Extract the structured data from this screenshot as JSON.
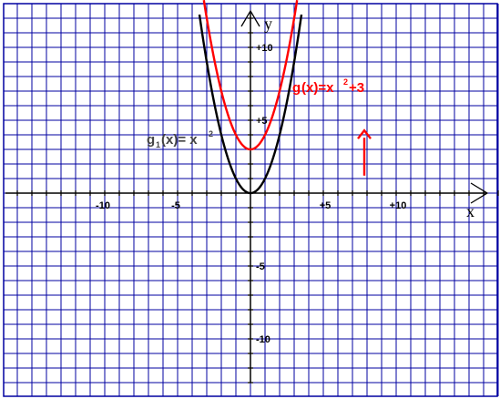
{
  "chart_data": {
    "type": "line",
    "title": "",
    "xlabel": "x",
    "ylabel": "y",
    "xlim": [
      -16.5,
      17.5
    ],
    "ylim": [
      -13.7,
      13.2
    ],
    "grid": true,
    "x_ticks": [
      {
        "value": -10,
        "label": "-10"
      },
      {
        "value": -5,
        "label": "-5"
      },
      {
        "value": 5,
        "label": "+5"
      },
      {
        "value": 10,
        "label": "+10"
      }
    ],
    "y_ticks": [
      {
        "value": 10,
        "label": "+10"
      },
      {
        "value": 5,
        "label": "+5"
      },
      {
        "value": -5,
        "label": "-5"
      },
      {
        "value": -10,
        "label": "-10"
      }
    ],
    "series": [
      {
        "name_main": "g",
        "name_sub": "1",
        "name_mid": "(x)= x",
        "name_sup": "2",
        "name_end": "",
        "color": "#000000",
        "expression": "x^2",
        "x": [
          -3.5,
          -3,
          -2.5,
          -2,
          -1.5,
          -1,
          -0.5,
          0,
          0.5,
          1,
          1.5,
          2,
          2.5,
          3,
          3.5
        ],
        "y": [
          12.25,
          9,
          6.25,
          4,
          2.25,
          1,
          0.25,
          0,
          0.25,
          1,
          2.25,
          4,
          6.25,
          9,
          12.25
        ]
      },
      {
        "name_main": "g",
        "name_sub": "",
        "name_mid": "(x)=x",
        "name_sup": "2",
        "name_end": "+3",
        "color": "#ff0000",
        "expression": "x^2+3",
        "x": [
          -3.2,
          -3,
          -2.5,
          -2,
          -1.5,
          -1,
          -0.5,
          0,
          0.5,
          1,
          1.5,
          2,
          2.5,
          3,
          3.2
        ],
        "y": [
          13.24,
          12,
          9.25,
          7,
          5.25,
          4,
          3.25,
          3,
          3.25,
          4,
          5.25,
          7,
          9.25,
          12,
          13.24
        ]
      }
    ],
    "annotations": [
      {
        "type": "arrow",
        "color": "#ff0000",
        "x": 8,
        "from_y": 1.2,
        "to_y": 4.3
      }
    ],
    "colors": {
      "grid": "#0000a0",
      "axes": "#000000"
    }
  }
}
